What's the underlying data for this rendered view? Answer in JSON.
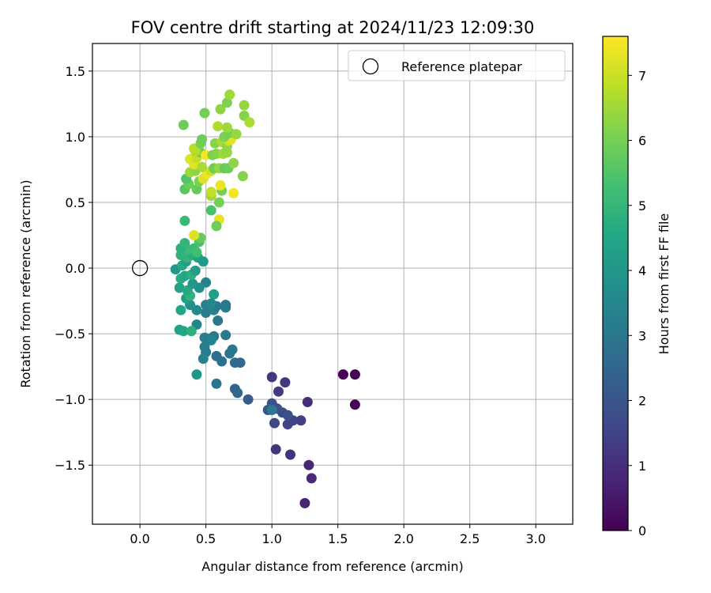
{
  "chart_data": {
    "type": "scatter",
    "title": "FOV centre drift starting at 2024/11/23 12:09:30",
    "xlabel": "Angular distance from reference (arcmin)",
    "ylabel": "Rotation from reference (arcmin)",
    "xlim": [
      -0.36,
      3.28
    ],
    "ylim": [
      -1.95,
      1.71
    ],
    "xticks": [
      "0.0",
      "0.5",
      "1.0",
      "1.5",
      "2.0",
      "2.5",
      "3.0"
    ],
    "yticks": [
      "−1.5",
      "−1.0",
      "−0.5",
      "0.0",
      "0.5",
      "1.0",
      "1.5"
    ],
    "grid": true,
    "legend": {
      "placement": "top-right",
      "entries": [
        "Reference platepar"
      ]
    },
    "reference_point": {
      "x": 0.0,
      "y": 0.0
    },
    "colorbar": {
      "label": "Hours from first FF file",
      "range": [
        0,
        7.6
      ],
      "ticks": [
        "0",
        "1",
        "2",
        "3",
        "4",
        "5",
        "6",
        "7"
      ],
      "colormap": "viridis"
    },
    "points": [
      {
        "x": 1.54,
        "y": -0.81,
        "t": 0.05
      },
      {
        "x": 1.63,
        "y": -0.81,
        "t": 0.08
      },
      {
        "x": 1.63,
        "y": -1.04,
        "t": 0.1
      },
      {
        "x": 1.3,
        "y": -1.6,
        "t": 0.9
      },
      {
        "x": 1.28,
        "y": -1.5,
        "t": 0.85
      },
      {
        "x": 1.25,
        "y": -1.79,
        "t": 0.8
      },
      {
        "x": 1.27,
        "y": -1.02,
        "t": 1.0
      },
      {
        "x": 1.14,
        "y": -1.42,
        "t": 1.1
      },
      {
        "x": 1.03,
        "y": -1.38,
        "t": 1.15
      },
      {
        "x": 1.0,
        "y": -0.83,
        "t": 1.2
      },
      {
        "x": 1.1,
        "y": -0.87,
        "t": 1.25
      },
      {
        "x": 1.05,
        "y": -0.94,
        "t": 1.3
      },
      {
        "x": 1.22,
        "y": -1.16,
        "t": 1.4
      },
      {
        "x": 1.16,
        "y": -1.16,
        "t": 1.5
      },
      {
        "x": 1.12,
        "y": -1.19,
        "t": 1.5
      },
      {
        "x": 1.02,
        "y": -1.18,
        "t": 1.6
      },
      {
        "x": 1.08,
        "y": -1.1,
        "t": 1.7
      },
      {
        "x": 1.04,
        "y": -1.07,
        "t": 1.8
      },
      {
        "x": 1.0,
        "y": -1.03,
        "t": 1.9
      },
      {
        "x": 0.97,
        "y": -1.08,
        "t": 2.0
      },
      {
        "x": 0.82,
        "y": -1.0,
        "t": 2.2
      },
      {
        "x": 1.0,
        "y": -1.08,
        "t": 3.0
      },
      {
        "x": 1.12,
        "y": -1.12,
        "t": 1.85
      },
      {
        "x": 0.72,
        "y": -0.92,
        "t": 2.4
      },
      {
        "x": 0.74,
        "y": -0.95,
        "t": 2.5
      },
      {
        "x": 0.58,
        "y": -0.88,
        "t": 2.9
      },
      {
        "x": 0.72,
        "y": -0.72,
        "t": 2.6
      },
      {
        "x": 0.76,
        "y": -0.72,
        "t": 2.55
      },
      {
        "x": 0.58,
        "y": -0.67,
        "t": 2.7
      },
      {
        "x": 0.62,
        "y": -0.71,
        "t": 2.8
      },
      {
        "x": 0.68,
        "y": -0.65,
        "t": 2.9
      },
      {
        "x": 0.7,
        "y": -0.62,
        "t": 3.0
      },
      {
        "x": 0.5,
        "y": -0.64,
        "t": 3.1
      },
      {
        "x": 0.48,
        "y": -0.69,
        "t": 3.3
      },
      {
        "x": 0.49,
        "y": -0.6,
        "t": 3.2
      },
      {
        "x": 0.49,
        "y": -0.53,
        "t": 3.2
      },
      {
        "x": 0.52,
        "y": -0.54,
        "t": 3.1
      },
      {
        "x": 0.56,
        "y": -0.52,
        "t": 3.0
      },
      {
        "x": 0.54,
        "y": -0.55,
        "t": 3.35
      },
      {
        "x": 0.65,
        "y": -0.51,
        "t": 3.1
      },
      {
        "x": 0.59,
        "y": -0.4,
        "t": 3.0
      },
      {
        "x": 0.5,
        "y": -0.34,
        "t": 3.2
      },
      {
        "x": 0.5,
        "y": -0.28,
        "t": 3.3
      },
      {
        "x": 0.56,
        "y": -0.32,
        "t": 3.4
      },
      {
        "x": 0.58,
        "y": -0.29,
        "t": 3.1
      },
      {
        "x": 0.65,
        "y": -0.3,
        "t": 3.2
      },
      {
        "x": 0.65,
        "y": -0.28,
        "t": 3.0
      },
      {
        "x": 0.54,
        "y": -0.27,
        "t": 3.5
      },
      {
        "x": 0.56,
        "y": -0.2,
        "t": 4.3
      },
      {
        "x": 0.5,
        "y": -0.11,
        "t": 3.3
      },
      {
        "x": 0.45,
        "y": -0.15,
        "t": 3.7
      },
      {
        "x": 0.43,
        "y": -0.32,
        "t": 3.6
      },
      {
        "x": 0.38,
        "y": -0.28,
        "t": 3.8
      },
      {
        "x": 0.43,
        "y": -0.43,
        "t": 3.5
      },
      {
        "x": 0.43,
        "y": -0.81,
        "t": 4.0
      },
      {
        "x": 0.3,
        "y": -0.47,
        "t": 4.3
      },
      {
        "x": 0.33,
        "y": -0.48,
        "t": 4.5
      },
      {
        "x": 0.39,
        "y": -0.48,
        "t": 4.8
      },
      {
        "x": 0.31,
        "y": -0.32,
        "t": 4.5
      },
      {
        "x": 0.35,
        "y": -0.23,
        "t": 4.2
      },
      {
        "x": 0.38,
        "y": -0.21,
        "t": 4.9
      },
      {
        "x": 0.3,
        "y": -0.15,
        "t": 4.4
      },
      {
        "x": 0.36,
        "y": -0.17,
        "t": 4.6
      },
      {
        "x": 0.4,
        "y": -0.12,
        "t": 4.0
      },
      {
        "x": 0.31,
        "y": -0.08,
        "t": 4.7
      },
      {
        "x": 0.34,
        "y": -0.06,
        "t": 4.5
      },
      {
        "x": 0.39,
        "y": -0.05,
        "t": 4.8
      },
      {
        "x": 0.42,
        "y": -0.02,
        "t": 4.2
      },
      {
        "x": 0.27,
        "y": -0.01,
        "t": 4.0
      },
      {
        "x": 0.32,
        "y": 0.02,
        "t": 4.6
      },
      {
        "x": 0.35,
        "y": 0.05,
        "t": 4.3
      },
      {
        "x": 0.36,
        "y": 0.08,
        "t": 5.0
      },
      {
        "x": 0.31,
        "y": 0.1,
        "t": 4.9
      },
      {
        "x": 0.4,
        "y": 0.1,
        "t": 4.7
      },
      {
        "x": 0.44,
        "y": 0.08,
        "t": 4.4
      },
      {
        "x": 0.48,
        "y": 0.05,
        "t": 4.1
      },
      {
        "x": 0.36,
        "y": 0.14,
        "t": 5.2
      },
      {
        "x": 0.31,
        "y": 0.15,
        "t": 4.8
      },
      {
        "x": 0.41,
        "y": 0.15,
        "t": 5.1
      },
      {
        "x": 0.43,
        "y": 0.12,
        "t": 5.3
      },
      {
        "x": 0.34,
        "y": 0.19,
        "t": 5.0
      },
      {
        "x": 0.45,
        "y": 0.2,
        "t": 5.4
      },
      {
        "x": 0.46,
        "y": 0.23,
        "t": 5.8
      },
      {
        "x": 0.41,
        "y": 0.25,
        "t": 7.2
      },
      {
        "x": 0.34,
        "y": 0.36,
        "t": 5.1
      },
      {
        "x": 0.54,
        "y": 0.44,
        "t": 5.4
      },
      {
        "x": 0.6,
        "y": 0.37,
        "t": 7.3
      },
      {
        "x": 0.58,
        "y": 0.32,
        "t": 5.9
      },
      {
        "x": 0.6,
        "y": 0.5,
        "t": 6.0
      },
      {
        "x": 0.54,
        "y": 0.55,
        "t": 6.5
      },
      {
        "x": 0.54,
        "y": 0.58,
        "t": 6.9
      },
      {
        "x": 0.62,
        "y": 0.59,
        "t": 6.0
      },
      {
        "x": 0.61,
        "y": 0.63,
        "t": 7.4
      },
      {
        "x": 0.71,
        "y": 0.57,
        "t": 7.5
      },
      {
        "x": 0.34,
        "y": 0.6,
        "t": 5.6
      },
      {
        "x": 0.43,
        "y": 0.6,
        "t": 5.8
      },
      {
        "x": 0.37,
        "y": 0.64,
        "t": 5.9
      },
      {
        "x": 0.35,
        "y": 0.68,
        "t": 5.5
      },
      {
        "x": 0.45,
        "y": 0.66,
        "t": 6.1
      },
      {
        "x": 0.48,
        "y": 0.68,
        "t": 7.2
      },
      {
        "x": 0.51,
        "y": 0.72,
        "t": 7.4
      },
      {
        "x": 0.38,
        "y": 0.73,
        "t": 6.5
      },
      {
        "x": 0.42,
        "y": 0.74,
        "t": 6.3
      },
      {
        "x": 0.41,
        "y": 0.79,
        "t": 7.3
      },
      {
        "x": 0.47,
        "y": 0.77,
        "t": 6.6
      },
      {
        "x": 0.54,
        "y": 0.74,
        "t": 7.0
      },
      {
        "x": 0.56,
        "y": 0.76,
        "t": 5.9
      },
      {
        "x": 0.6,
        "y": 0.76,
        "t": 6.4
      },
      {
        "x": 0.64,
        "y": 0.76,
        "t": 5.8
      },
      {
        "x": 0.67,
        "y": 0.76,
        "t": 5.9
      },
      {
        "x": 0.71,
        "y": 0.8,
        "t": 6.3
      },
      {
        "x": 0.78,
        "y": 0.7,
        "t": 6.2
      },
      {
        "x": 0.38,
        "y": 0.83,
        "t": 7.2
      },
      {
        "x": 0.43,
        "y": 0.84,
        "t": 6.9
      },
      {
        "x": 0.46,
        "y": 0.88,
        "t": 6.0
      },
      {
        "x": 0.42,
        "y": 0.89,
        "t": 6.7
      },
      {
        "x": 0.5,
        "y": 0.86,
        "t": 7.5
      },
      {
        "x": 0.55,
        "y": 0.86,
        "t": 6.1
      },
      {
        "x": 0.58,
        "y": 0.87,
        "t": 6.2
      },
      {
        "x": 0.63,
        "y": 0.87,
        "t": 6.5
      },
      {
        "x": 0.66,
        "y": 0.88,
        "t": 6.4
      },
      {
        "x": 0.41,
        "y": 0.91,
        "t": 6.8
      },
      {
        "x": 0.46,
        "y": 0.95,
        "t": 6.0
      },
      {
        "x": 0.47,
        "y": 0.98,
        "t": 5.9
      },
      {
        "x": 0.57,
        "y": 0.95,
        "t": 6.2
      },
      {
        "x": 0.62,
        "y": 0.96,
        "t": 6.6
      },
      {
        "x": 0.66,
        "y": 0.93,
        "t": 6.3
      },
      {
        "x": 0.67,
        "y": 0.97,
        "t": 7.0
      },
      {
        "x": 0.69,
        "y": 0.98,
        "t": 7.3
      },
      {
        "x": 0.64,
        "y": 1.0,
        "t": 6.1
      },
      {
        "x": 0.68,
        "y": 1.03,
        "t": 6.0
      },
      {
        "x": 0.73,
        "y": 1.02,
        "t": 6.4
      },
      {
        "x": 0.59,
        "y": 1.08,
        "t": 6.7
      },
      {
        "x": 0.66,
        "y": 1.07,
        "t": 6.5
      },
      {
        "x": 0.33,
        "y": 1.09,
        "t": 5.9
      },
      {
        "x": 0.79,
        "y": 1.16,
        "t": 6.2
      },
      {
        "x": 0.83,
        "y": 1.11,
        "t": 6.6
      },
      {
        "x": 0.49,
        "y": 1.18,
        "t": 6.0
      },
      {
        "x": 0.61,
        "y": 1.21,
        "t": 6.3
      },
      {
        "x": 0.66,
        "y": 1.26,
        "t": 6.1
      },
      {
        "x": 0.79,
        "y": 1.24,
        "t": 6.4
      },
      {
        "x": 0.68,
        "y": 1.32,
        "t": 6.5
      }
    ]
  }
}
